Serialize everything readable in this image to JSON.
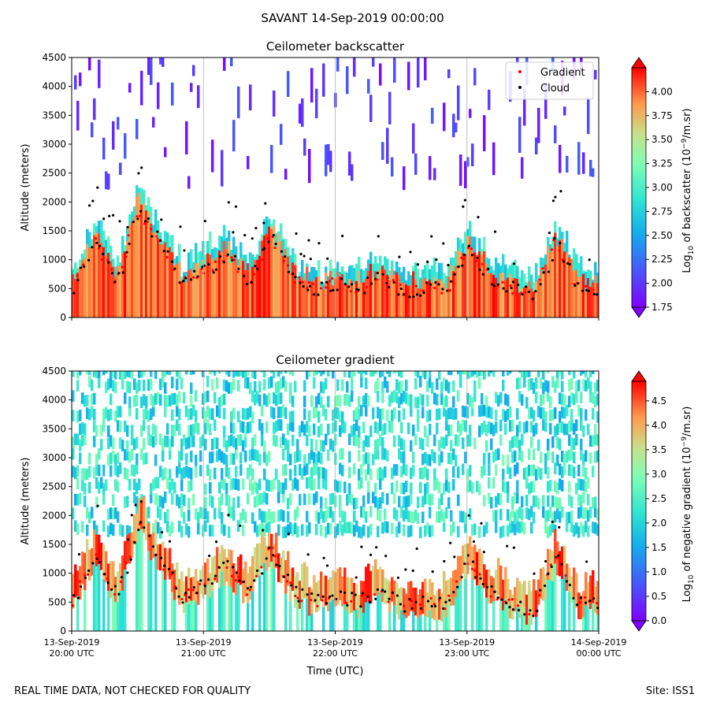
{
  "figure": {
    "suptitle": "SAVANT 14-Sep-2019 00:00:00",
    "footer_left": "REAL TIME DATA, NOT CHECKED FOR QUALITY",
    "footer_right": "Site: ISS1"
  },
  "chart_data": [
    {
      "type": "heatmap",
      "title": "Ceilometer backscatter",
      "ylabel": "Altitude (meters)",
      "ylim": [
        0,
        4500
      ],
      "yticks": [
        "0",
        "500",
        "1000",
        "1500",
        "2000",
        "2500",
        "3000",
        "3500",
        "4000",
        "4500"
      ],
      "xticks": [
        "13-Sep-2019 20:00 UTC",
        "13-Sep-2019 21:00 UTC",
        "13-Sep-2019 22:00 UTC",
        "13-Sep-2019 23:00 UTC",
        "14-Sep-2019 00:00 UTC"
      ],
      "grid": "vertical",
      "legend": {
        "placement": "top-right",
        "entries": [
          {
            "label": "Gradient",
            "color": "#ff0000"
          },
          {
            "label": "Cloud",
            "color": "#000000"
          }
        ]
      },
      "colorbar": {
        "label_prefix": "Log",
        "label_sub": "10",
        "label_mid": " of backscatter (10",
        "label_sup": "−9",
        "label_suffix": "/m.sr)",
        "range": [
          1.75,
          4.25
        ],
        "ticks": [
          "1.75",
          "2.00",
          "2.25",
          "2.50",
          "2.75",
          "3.00",
          "3.25",
          "3.50",
          "3.75",
          "4.00"
        ],
        "colormap": "rainbow"
      },
      "cloud_base_profile": [
        {
          "t": "20:00",
          "altitude": 500
        },
        {
          "t": "20:10",
          "altitude": 1300
        },
        {
          "t": "20:20",
          "altitude": 600
        },
        {
          "t": "20:30",
          "altitude": 1900
        },
        {
          "t": "20:40",
          "altitude": 1200
        },
        {
          "t": "20:50",
          "altitude": 600
        },
        {
          "t": "21:00",
          "altitude": 800
        },
        {
          "t": "21:10",
          "altitude": 1100
        },
        {
          "t": "21:20",
          "altitude": 650
        },
        {
          "t": "21:30",
          "altitude": 1400
        },
        {
          "t": "21:40",
          "altitude": 700
        },
        {
          "t": "21:50",
          "altitude": 500
        },
        {
          "t": "22:00",
          "altitude": 600
        },
        {
          "t": "22:10",
          "altitude": 500
        },
        {
          "t": "22:20",
          "altitude": 700
        },
        {
          "t": "22:30",
          "altitude": 450
        },
        {
          "t": "22:40",
          "altitude": 500
        },
        {
          "t": "22:50",
          "altitude": 450
        },
        {
          "t": "23:00",
          "altitude": 1200
        },
        {
          "t": "23:10",
          "altitude": 700
        },
        {
          "t": "23:20",
          "altitude": 500
        },
        {
          "t": "23:30",
          "altitude": 350
        },
        {
          "t": "23:40",
          "altitude": 1300
        },
        {
          "t": "23:50",
          "altitude": 500
        },
        {
          "t": "00:00",
          "altitude": 500
        }
      ]
    },
    {
      "type": "heatmap",
      "title": "Ceilometer gradient",
      "xlabel": "Time (UTC)",
      "ylabel": "Altitude (meters)",
      "ylim": [
        0,
        4500
      ],
      "yticks": [
        "0",
        "500",
        "1000",
        "1500",
        "2000",
        "2500",
        "3000",
        "3500",
        "4000",
        "4500"
      ],
      "xticks": [
        "13-Sep-2019 20:00 UTC",
        "13-Sep-2019 21:00 UTC",
        "13-Sep-2019 22:00 UTC",
        "13-Sep-2019 23:00 UTC",
        "14-Sep-2019 00:00 UTC"
      ],
      "grid": "vertical",
      "colorbar": {
        "label_prefix": "Log",
        "label_sub": "10",
        "label_mid": " of negative gradient (10",
        "label_sup": "−9",
        "label_suffix": "/m.sr)",
        "range": [
          0.0,
          4.9
        ],
        "ticks": [
          "0.0",
          "0.5",
          "1.0",
          "1.5",
          "2.0",
          "2.5",
          "3.0",
          "3.5",
          "4.0",
          "4.5"
        ],
        "colormap": "rainbow"
      }
    }
  ]
}
